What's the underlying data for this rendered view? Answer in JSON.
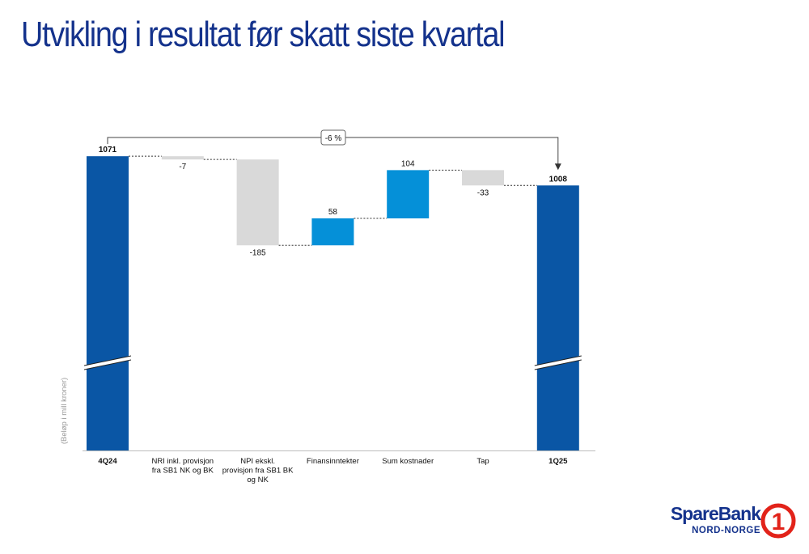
{
  "page": {
    "title": "Utvikling i resultat før skatt siste kvartal"
  },
  "chart_data": {
    "type": "waterfall",
    "ylabel": "(Beløp i mill kroner)",
    "change_annotation": "-6 %",
    "categories": [
      "4Q24",
      "NRI inkl. provisjon fra SB1 NK og BK",
      "NPI ekskl. provisjon fra SB1 BK og NK",
      "Finansinntekter",
      "Sum kostnader",
      "Tap",
      "1Q25"
    ],
    "category_lines": [
      [
        "4Q24"
      ],
      [
        "NRI inkl. provisjon",
        "fra SB1 NK og BK"
      ],
      [
        "NPI ekskl.",
        "provisjon fra SB1 BK",
        "og NK"
      ],
      [
        "Finansinntekter"
      ],
      [
        "Sum kostnader"
      ],
      [
        "Tap"
      ],
      [
        "1Q25"
      ]
    ],
    "values": [
      1071,
      -7,
      -185,
      58,
      104,
      -33,
      1008
    ],
    "value_labels": [
      "1071",
      "-7",
      "-185",
      "58",
      "104",
      "-33",
      "1008"
    ],
    "kinds": [
      "total",
      "delta",
      "delta",
      "delta",
      "delta",
      "delta",
      "total"
    ],
    "axis_break": true,
    "colors": {
      "total": "#0a56a5",
      "increase": "#0590d8",
      "decrease": "#d9d9d9",
      "connector": "#333333",
      "axis": "#bdbdbd",
      "title": "#14328c"
    }
  },
  "logo": {
    "name": "SpareBank",
    "subtitle": "NORD-NORGE",
    "mark": "1"
  }
}
